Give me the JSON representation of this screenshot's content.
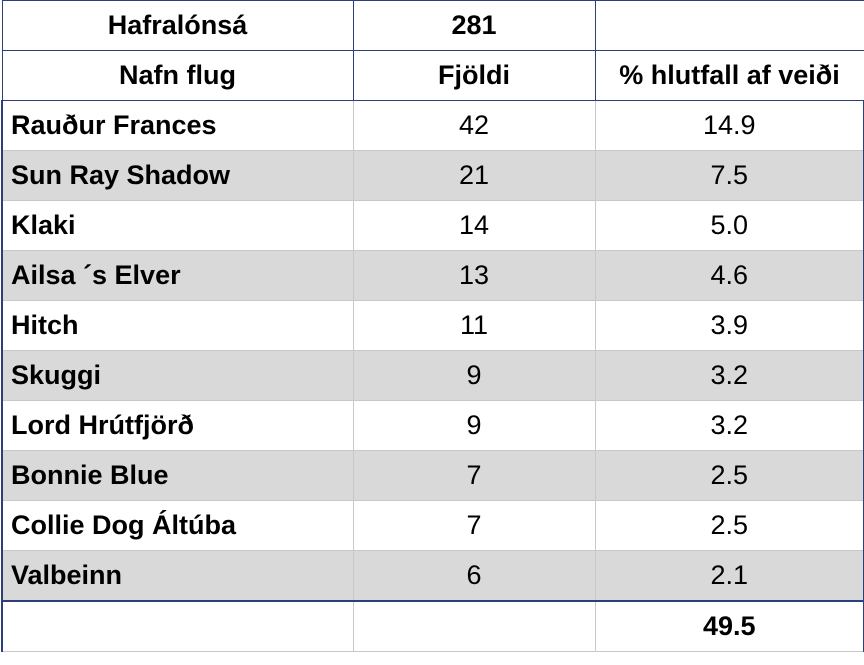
{
  "header": {
    "title": "Hafralónsá",
    "total": 281
  },
  "columns": [
    "Nafn flug",
    "Fjöldi",
    "% hlutfall af veiði"
  ],
  "rows": [
    [
      "Rauður Frances",
      42,
      "14.9"
    ],
    [
      "Sun Ray Shadow",
      21,
      "7.5"
    ],
    [
      "Klaki",
      14,
      "5.0"
    ],
    [
      "Ailsa ´s Elver",
      13,
      "4.6"
    ],
    [
      "Hitch",
      11,
      "3.9"
    ],
    [
      "Skuggi",
      9,
      "3.2"
    ],
    [
      "Lord Hrútfjörð",
      9,
      "3.2"
    ],
    [
      "Bonnie Blue",
      7,
      "2.5"
    ],
    [
      "Collie Dog Áltúba",
      7,
      "2.5"
    ],
    [
      "Valbeinn",
      6,
      "2.1"
    ]
  ],
  "footer": {
    "percent_total": "49.5"
  }
}
